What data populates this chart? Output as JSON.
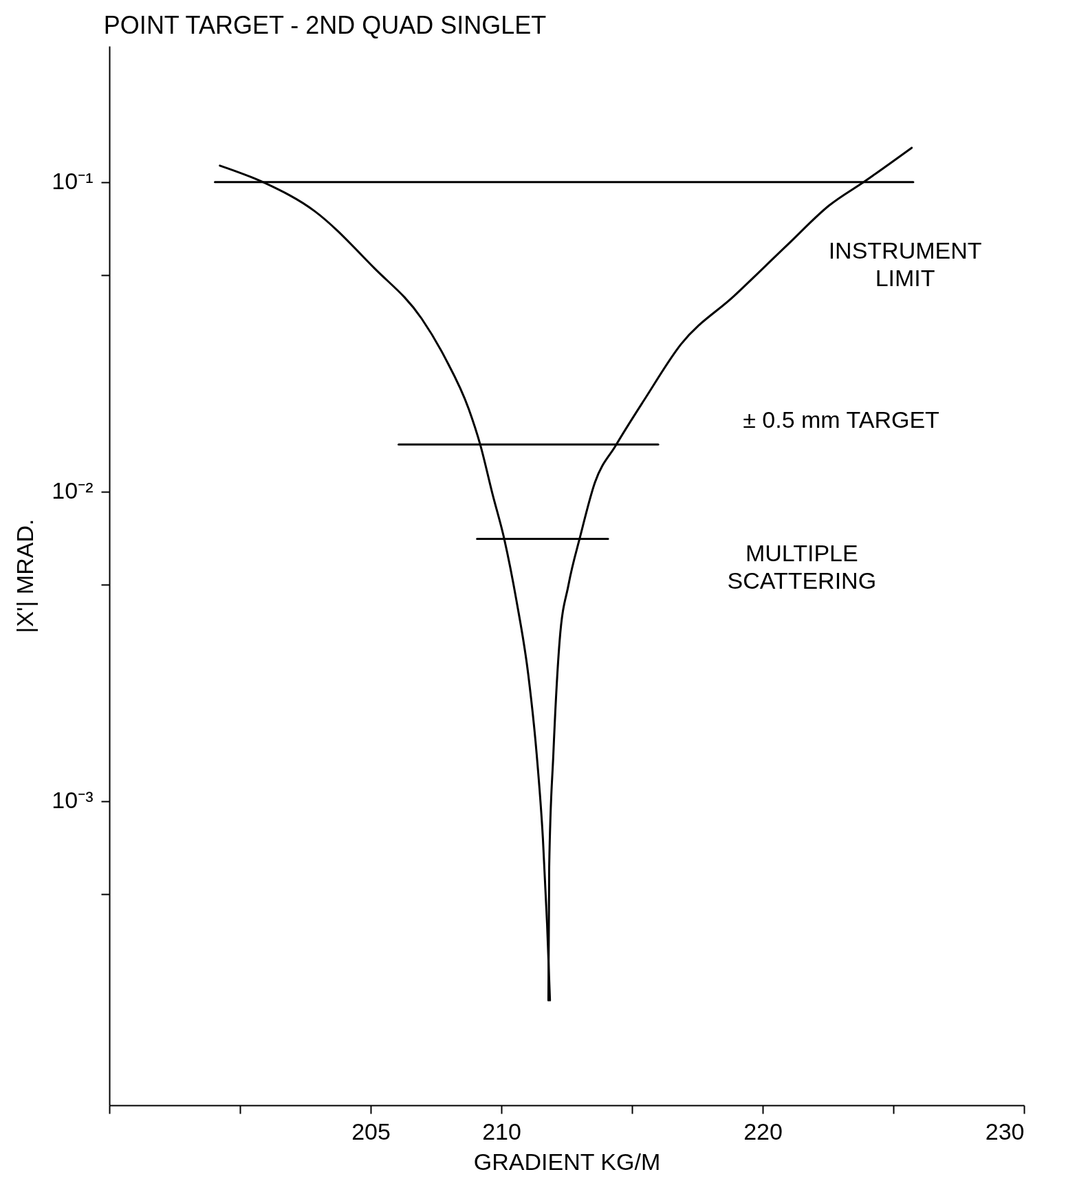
{
  "chart_data": {
    "type": "line",
    "title": "POINT TARGET - 2ND QUAD SINGLET",
    "xlabel": "GRADIENT  KG/M",
    "ylabel": "|X'| MRAD.",
    "log": "y",
    "grid": false,
    "marker": "none",
    "line_style": "solid",
    "xlim": [
      195,
      230
    ],
    "xticks": [
      {
        "value": 195,
        "label": null
      },
      {
        "value": 200,
        "label": null
      },
      205,
      210,
      {
        "value": 215,
        "label": null
      },
      220,
      {
        "value": 225,
        "label": null
      },
      230
    ],
    "ylim": [
      0.000104,
      0.275
    ],
    "yticks": [
      {
        "value": 0.1,
        "label": "10⁻¹"
      },
      {
        "value": 0.05,
        "label": null
      },
      {
        "value": 0.01,
        "label": "10⁻²"
      },
      {
        "value": 0.005,
        "label": null
      },
      {
        "value": 0.001,
        "label": "10⁻³"
      },
      {
        "value": 0.0005,
        "label": null
      }
    ],
    "series": [
      {
        "color": "#000000",
        "x": [
          199.23,
          200.93,
          202.86,
          205.12,
          206.95,
          207.85,
          208.75,
          209.2,
          209.66,
          210.11,
          210.58,
          211.03,
          211.35,
          211.59,
          211.75,
          211.86
        ],
        "values": [
          0.113,
          0.0995,
          0.0805,
          0.0529,
          0.0362,
          0.027,
          0.0185,
          0.0141,
          0.00983,
          0.00703,
          0.00443,
          0.00256,
          0.00142,
          0.000755,
          0.0004,
          0.000227
        ]
      },
      {
        "color": "#000000",
        "x": [
          211.8,
          211.83,
          211.99,
          212.23,
          212.57,
          213.02,
          213.58,
          214.38,
          215.52,
          216.87,
          218.91,
          220.95,
          222.55,
          223.9,
          225.7
        ],
        "values": [
          0.000227,
          0.000611,
          0.00142,
          0.0033,
          0.005,
          0.00718,
          0.0107,
          0.0141,
          0.0201,
          0.0299,
          0.0429,
          0.0627,
          0.0841,
          0.1005,
          0.129
        ]
      },
      {
        "color": "#000000",
        "x": [
          199.04,
          225.76
        ],
        "values": [
          0.1,
          0.1
        ]
      },
      {
        "color": "#000000",
        "x": [
          206.07,
          216.0
        ],
        "values": [
          0.0142,
          0.0142
        ]
      },
      {
        "color": "#000000",
        "x": [
          209.07,
          214.08
        ],
        "values": [
          0.00703,
          0.00703
        ]
      }
    ],
    "annotations": [
      "INSTRUMENT\nLIMIT",
      "± 0.5 mm TARGET",
      "MULTIPLE\nSCATTERING"
    ]
  }
}
